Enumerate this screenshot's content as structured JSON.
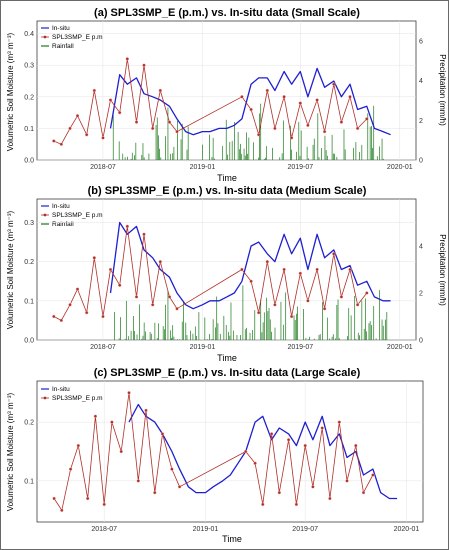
{
  "chart_data": [
    {
      "type": "line",
      "title": "(a) SPL3SMP_E (p.m.) vs. In-situ data (Small Scale)",
      "xlabel": "Time",
      "ylabel": "Volumetric Soil Moisture (m³ m⁻³)",
      "y2label": "Precipitation (mm/h)",
      "legend": [
        "In-situ",
        "SPL3SMP_E p.m",
        "Rainfall"
      ],
      "legend_position": "top-left",
      "ylim": [
        0,
        0.44
      ],
      "y2lim": [
        0,
        7
      ],
      "yticks": [
        0.0,
        0.1,
        0.2,
        0.3,
        0.4
      ],
      "y2ticks": [
        0,
        2,
        4,
        6
      ],
      "xticks": [
        "2018-07",
        "2019-01",
        "2019-07",
        "2020-01"
      ],
      "series": [
        {
          "name": "In-situ",
          "color": "#1f1fd0",
          "x": [
            "2018-07-15",
            "2018-08-01",
            "2018-08-15",
            "2018-09-01",
            "2018-09-15",
            "2018-10-01",
            "2018-10-15",
            "2018-11-01",
            "2018-11-15",
            "2018-12-01",
            "2018-12-15",
            "2019-01-01",
            "2019-01-15",
            "2019-02-01",
            "2019-02-15",
            "2019-03-01",
            "2019-03-15",
            "2019-04-01",
            "2019-04-15",
            "2019-05-01",
            "2019-05-15",
            "2019-06-01",
            "2019-06-15",
            "2019-07-01",
            "2019-07-15",
            "2019-08-01",
            "2019-08-15",
            "2019-09-01",
            "2019-09-15",
            "2019-10-01",
            "2019-10-15",
            "2019-11-01",
            "2019-11-15",
            "2019-12-01",
            "2019-12-15"
          ],
          "y": [
            0.1,
            0.27,
            0.24,
            0.26,
            0.21,
            0.2,
            0.19,
            0.17,
            0.13,
            0.09,
            0.08,
            0.09,
            0.09,
            0.1,
            0.1,
            0.11,
            0.13,
            0.24,
            0.26,
            0.26,
            0.22,
            0.28,
            0.24,
            0.28,
            0.2,
            0.29,
            0.23,
            0.25,
            0.2,
            0.24,
            0.16,
            0.17,
            0.1,
            0.09,
            0.08
          ]
        },
        {
          "name": "SPL3SMP_E p.m",
          "color": "#b0302a",
          "x": [
            "2018-04-01",
            "2018-04-15",
            "2018-05-01",
            "2018-05-15",
            "2018-06-01",
            "2018-06-15",
            "2018-07-01",
            "2018-07-15",
            "2018-08-01",
            "2018-08-15",
            "2018-09-01",
            "2018-09-15",
            "2018-10-01",
            "2018-10-15",
            "2018-11-01",
            "2018-11-15",
            "2019-03-15",
            "2019-04-01",
            "2019-04-15",
            "2019-05-01",
            "2019-05-15",
            "2019-06-01",
            "2019-06-15",
            "2019-07-01",
            "2019-07-15",
            "2019-08-01",
            "2019-08-15",
            "2019-09-01",
            "2019-09-15",
            "2019-10-01",
            "2019-10-15",
            "2019-11-01"
          ],
          "y": [
            0.06,
            0.05,
            0.1,
            0.14,
            0.08,
            0.22,
            0.07,
            0.19,
            0.15,
            0.32,
            0.12,
            0.3,
            0.1,
            0.22,
            0.12,
            0.09,
            0.2,
            0.16,
            0.08,
            0.22,
            0.1,
            0.2,
            0.07,
            0.18,
            0.11,
            0.19,
            0.09,
            0.24,
            0.12,
            0.2,
            0.1,
            0.13
          ]
        }
      ]
    },
    {
      "type": "line",
      "title": "(b) SPL3SMP_E (p.m.) vs. In-situ data (Medium Scale)",
      "xlabel": "Time",
      "ylabel": "Volumetric Soil Moisture (m³ m⁻³)",
      "y2label": "Precipitation (mm/h)",
      "legend": [
        "In-situ",
        "SPL3SMP_E p.m",
        "Rainfall"
      ],
      "legend_position": "top-left",
      "ylim": [
        0,
        0.36
      ],
      "y2lim": [
        0,
        6
      ],
      "yticks": [
        0.0,
        0.1,
        0.2,
        0.3
      ],
      "y2ticks": [
        0,
        2,
        4
      ],
      "xticks": [
        "2018-07",
        "2019-01",
        "2019-07",
        "2020-01"
      ],
      "series": [
        {
          "name": "In-situ",
          "color": "#1f1fd0",
          "x": [
            "2018-07-15",
            "2018-08-01",
            "2018-08-15",
            "2018-09-01",
            "2018-09-15",
            "2018-10-01",
            "2018-10-15",
            "2018-11-01",
            "2018-11-15",
            "2018-12-01",
            "2018-12-15",
            "2019-01-01",
            "2019-01-15",
            "2019-02-01",
            "2019-02-15",
            "2019-03-01",
            "2019-03-15",
            "2019-04-01",
            "2019-04-15",
            "2019-05-01",
            "2019-05-15",
            "2019-06-01",
            "2019-06-15",
            "2019-07-01",
            "2019-07-15",
            "2019-08-01",
            "2019-08-15",
            "2019-09-01",
            "2019-09-15",
            "2019-10-01",
            "2019-10-15",
            "2019-11-01",
            "2019-11-15",
            "2019-12-01",
            "2019-12-15"
          ],
          "y": [
            0.12,
            0.3,
            0.27,
            0.29,
            0.23,
            0.21,
            0.18,
            0.16,
            0.12,
            0.09,
            0.08,
            0.09,
            0.1,
            0.1,
            0.11,
            0.12,
            0.15,
            0.24,
            0.25,
            0.22,
            0.2,
            0.27,
            0.22,
            0.26,
            0.18,
            0.27,
            0.21,
            0.23,
            0.18,
            0.19,
            0.14,
            0.15,
            0.11,
            0.1,
            0.1
          ]
        },
        {
          "name": "SPL3SMP_E p.m",
          "color": "#b0302a",
          "x": [
            "2018-04-01",
            "2018-04-15",
            "2018-05-01",
            "2018-05-15",
            "2018-06-01",
            "2018-06-15",
            "2018-07-01",
            "2018-07-15",
            "2018-08-01",
            "2018-08-15",
            "2018-09-01",
            "2018-09-15",
            "2018-10-01",
            "2018-10-15",
            "2018-11-01",
            "2018-11-15",
            "2019-03-15",
            "2019-04-01",
            "2019-04-15",
            "2019-05-01",
            "2019-05-15",
            "2019-06-01",
            "2019-06-15",
            "2019-07-01",
            "2019-07-15",
            "2019-08-01",
            "2019-08-15",
            "2019-09-01",
            "2019-09-15",
            "2019-10-01",
            "2019-10-15",
            "2019-11-01"
          ],
          "y": [
            0.06,
            0.05,
            0.09,
            0.13,
            0.07,
            0.21,
            0.06,
            0.18,
            0.14,
            0.29,
            0.11,
            0.27,
            0.09,
            0.2,
            0.11,
            0.08,
            0.18,
            0.15,
            0.07,
            0.2,
            0.09,
            0.18,
            0.06,
            0.17,
            0.1,
            0.18,
            0.08,
            0.22,
            0.11,
            0.18,
            0.09,
            0.12
          ]
        }
      ]
    },
    {
      "type": "line",
      "title": "(c) SPL3SMP_E (p.m.) vs. In-situ data (Large Scale)",
      "xlabel": "Time",
      "ylabel": "Volumetric Soil Moisture (m³ m⁻³)",
      "legend": [
        "In-situ",
        "SPL3SMP_E p.m"
      ],
      "legend_position": "top-left",
      "ylim": [
        0.03,
        0.27
      ],
      "yticks": [
        0.1,
        0.2
      ],
      "xticks": [
        "2018-07",
        "2019-01",
        "2019-07",
        "2020-01"
      ],
      "series": [
        {
          "name": "In-situ",
          "color": "#1f1fd0",
          "x": [
            "2018-08-15",
            "2018-09-01",
            "2018-09-15",
            "2018-10-01",
            "2018-10-15",
            "2018-11-01",
            "2018-11-15",
            "2018-12-01",
            "2018-12-15",
            "2019-01-01",
            "2019-01-15",
            "2019-02-01",
            "2019-02-15",
            "2019-03-01",
            "2019-03-15",
            "2019-04-01",
            "2019-04-15",
            "2019-05-01",
            "2019-05-15",
            "2019-06-01",
            "2019-06-15",
            "2019-07-01",
            "2019-07-15",
            "2019-08-01",
            "2019-08-15",
            "2019-09-01",
            "2019-09-15",
            "2019-10-01",
            "2019-10-15",
            "2019-11-01",
            "2019-11-15",
            "2019-12-01",
            "2019-12-15"
          ],
          "y": [
            0.2,
            0.23,
            0.21,
            0.2,
            0.18,
            0.15,
            0.12,
            0.09,
            0.08,
            0.08,
            0.09,
            0.1,
            0.11,
            0.13,
            0.15,
            0.2,
            0.21,
            0.17,
            0.19,
            0.18,
            0.16,
            0.2,
            0.17,
            0.21,
            0.16,
            0.18,
            0.14,
            0.15,
            0.11,
            0.12,
            0.08,
            0.07,
            0.07
          ]
        },
        {
          "name": "SPL3SMP_E p.m",
          "color": "#b0302a",
          "x": [
            "2018-04-01",
            "2018-04-15",
            "2018-05-01",
            "2018-05-15",
            "2018-06-01",
            "2018-06-15",
            "2018-07-01",
            "2018-07-15",
            "2018-08-01",
            "2018-08-15",
            "2018-09-01",
            "2018-09-15",
            "2018-10-01",
            "2018-10-15",
            "2018-11-01",
            "2018-11-15",
            "2019-03-15",
            "2019-04-01",
            "2019-04-15",
            "2019-05-01",
            "2019-05-15",
            "2019-06-01",
            "2019-06-15",
            "2019-07-01",
            "2019-07-15",
            "2019-08-01",
            "2019-08-15",
            "2019-09-01",
            "2019-09-15",
            "2019-10-01",
            "2019-10-15",
            "2019-11-01"
          ],
          "y": [
            0.07,
            0.05,
            0.12,
            0.16,
            0.07,
            0.21,
            0.06,
            0.2,
            0.15,
            0.25,
            0.1,
            0.22,
            0.08,
            0.18,
            0.12,
            0.09,
            0.15,
            0.13,
            0.06,
            0.18,
            0.08,
            0.17,
            0.06,
            0.16,
            0.09,
            0.19,
            0.07,
            0.2,
            0.1,
            0.16,
            0.08,
            0.11
          ]
        }
      ]
    }
  ]
}
